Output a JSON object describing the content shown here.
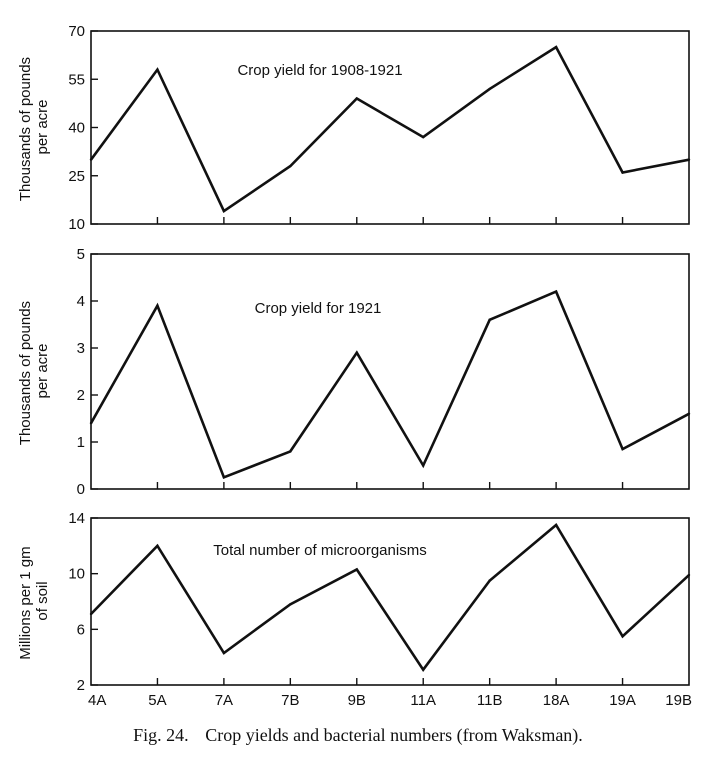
{
  "chart_data": [
    {
      "type": "line",
      "title": "Crop yield for 1908-1921",
      "ylabel": "Thousands of pounds per acre",
      "ylim": [
        10,
        70
      ],
      "yticks": [
        10,
        25,
        40,
        55,
        70
      ],
      "categories": [
        "4A",
        "5A",
        "7A",
        "7B",
        "9B",
        "11A",
        "11B",
        "18A",
        "19A",
        "19B"
      ],
      "values": [
        30,
        58,
        14,
        28,
        49,
        37,
        52,
        65,
        26,
        30
      ]
    },
    {
      "type": "line",
      "title": "Crop yield for 1921",
      "ylabel": "Thousands of pounds per acre",
      "ylim": [
        0,
        5
      ],
      "yticks": [
        0,
        1,
        2,
        3,
        4,
        5
      ],
      "categories": [
        "4A",
        "5A",
        "7A",
        "7B",
        "9B",
        "11A",
        "11B",
        "18A",
        "19A",
        "19B"
      ],
      "values": [
        1.4,
        3.9,
        0.25,
        0.8,
        2.9,
        0.5,
        3.6,
        4.2,
        0.85,
        1.6
      ]
    },
    {
      "type": "line",
      "title": "Total number of microorganisms",
      "ylabel": "Millions per 1 gm of soil",
      "ylim": [
        2,
        14
      ],
      "yticks": [
        2,
        6,
        10,
        14
      ],
      "categories": [
        "4A",
        "5A",
        "7A",
        "7B",
        "9B",
        "11A",
        "11B",
        "18A",
        "19A",
        "19B"
      ],
      "values": [
        7.1,
        12.0,
        4.3,
        7.8,
        10.3,
        3.1,
        9.5,
        13.5,
        5.5,
        9.9
      ]
    }
  ],
  "x_tick_labels": [
    "4A",
    "5A",
    "7A",
    "7B",
    "9B",
    "11A",
    "11B",
    "18A",
    "19A",
    "19B"
  ],
  "panels": [
    {
      "ylabel_line1": "Thousands of pounds",
      "ylabel_line2": "per acre"
    },
    {
      "ylabel_line1": "Thousands of pounds",
      "ylabel_line2": "per acre"
    },
    {
      "ylabel_line1": "Millions per 1 gm",
      "ylabel_line2": "of soil"
    }
  ],
  "caption": {
    "label": "Fig. 24.",
    "text": "Crop yields and bacterial numbers (from Waksman)."
  }
}
